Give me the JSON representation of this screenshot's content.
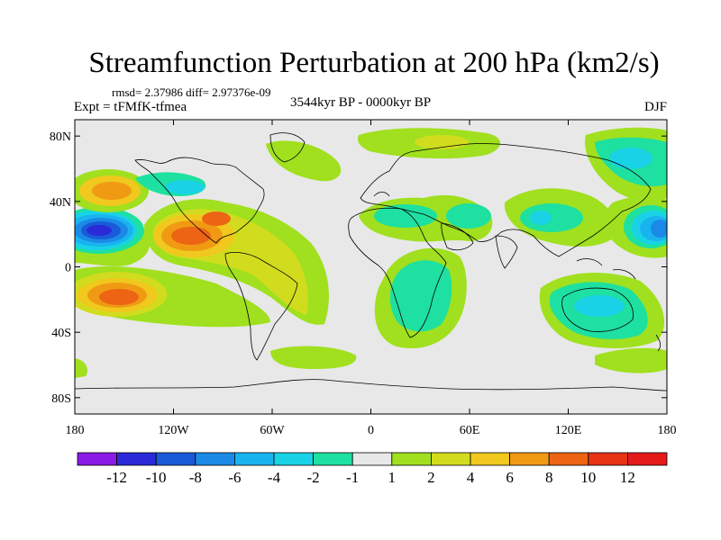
{
  "plot": {
    "title": "Streamfunction Perturbation at 200 hPa (km2/s)",
    "stats": "rmsd= 2.37986 diff= 2.97376e-09",
    "experiment": "Expt = tFMfK-tfmea",
    "period": "3544kyr BP - 0000kyr BP",
    "season": "DJF"
  },
  "chart_data": {
    "type": "filled-contour-map",
    "variable": "Streamfunction Perturbation",
    "level": "200 hPa",
    "units": "km2/s",
    "x_ticks": [
      "180",
      "120W",
      "60W",
      "0",
      "60E",
      "120E",
      "180"
    ],
    "y_ticks": [
      "80N",
      "40N",
      "0",
      "40S",
      "80S"
    ],
    "lon_range": [
      -180,
      180
    ],
    "lat_range": [
      -90,
      90
    ],
    "colorbar_labels": [
      "-12",
      "-10",
      "-8",
      "-6",
      "-4",
      "-2",
      "-1",
      "1",
      "2",
      "4",
      "6",
      "8",
      "10",
      "12"
    ],
    "colorbar_colors": [
      "#8a1ae6",
      "#2a2ad8",
      "#1a5ad8",
      "#1a8ae6",
      "#19b4f0",
      "#19d2e6",
      "#1ee0a0",
      "#e8e8e8",
      "#a0e01e",
      "#d2dc1e",
      "#f0c81e",
      "#f09a14",
      "#ec6414",
      "#e83214",
      "#e41a1a"
    ],
    "features": [
      {
        "lon": -155,
        "lat": 23,
        "value": -12
      },
      {
        "lon": -160,
        "lat": 46,
        "value": 8
      },
      {
        "lon": -155,
        "lat": -20,
        "value": 10
      },
      {
        "lon": -108,
        "lat": 22,
        "value": 10
      },
      {
        "lon": -80,
        "lat": 27,
        "value": 8
      },
      {
        "lon": -50,
        "lat": -10,
        "value": 4
      },
      {
        "lon": -110,
        "lat": 45,
        "value": -2
      },
      {
        "lon": 20,
        "lat": 76,
        "value": 4
      },
      {
        "lon": 10,
        "lat": 30,
        "value": -2
      },
      {
        "lon": 30,
        "lat": -25,
        "value": -2
      },
      {
        "lon": 105,
        "lat": 30,
        "value": -2
      },
      {
        "lon": 130,
        "lat": -22,
        "value": -2
      },
      {
        "lon": 178,
        "lat": 28,
        "value": -8
      },
      {
        "lon": 150,
        "lat": 65,
        "value": -2
      },
      {
        "lon": -60,
        "lat": -68,
        "value": 2
      }
    ]
  }
}
